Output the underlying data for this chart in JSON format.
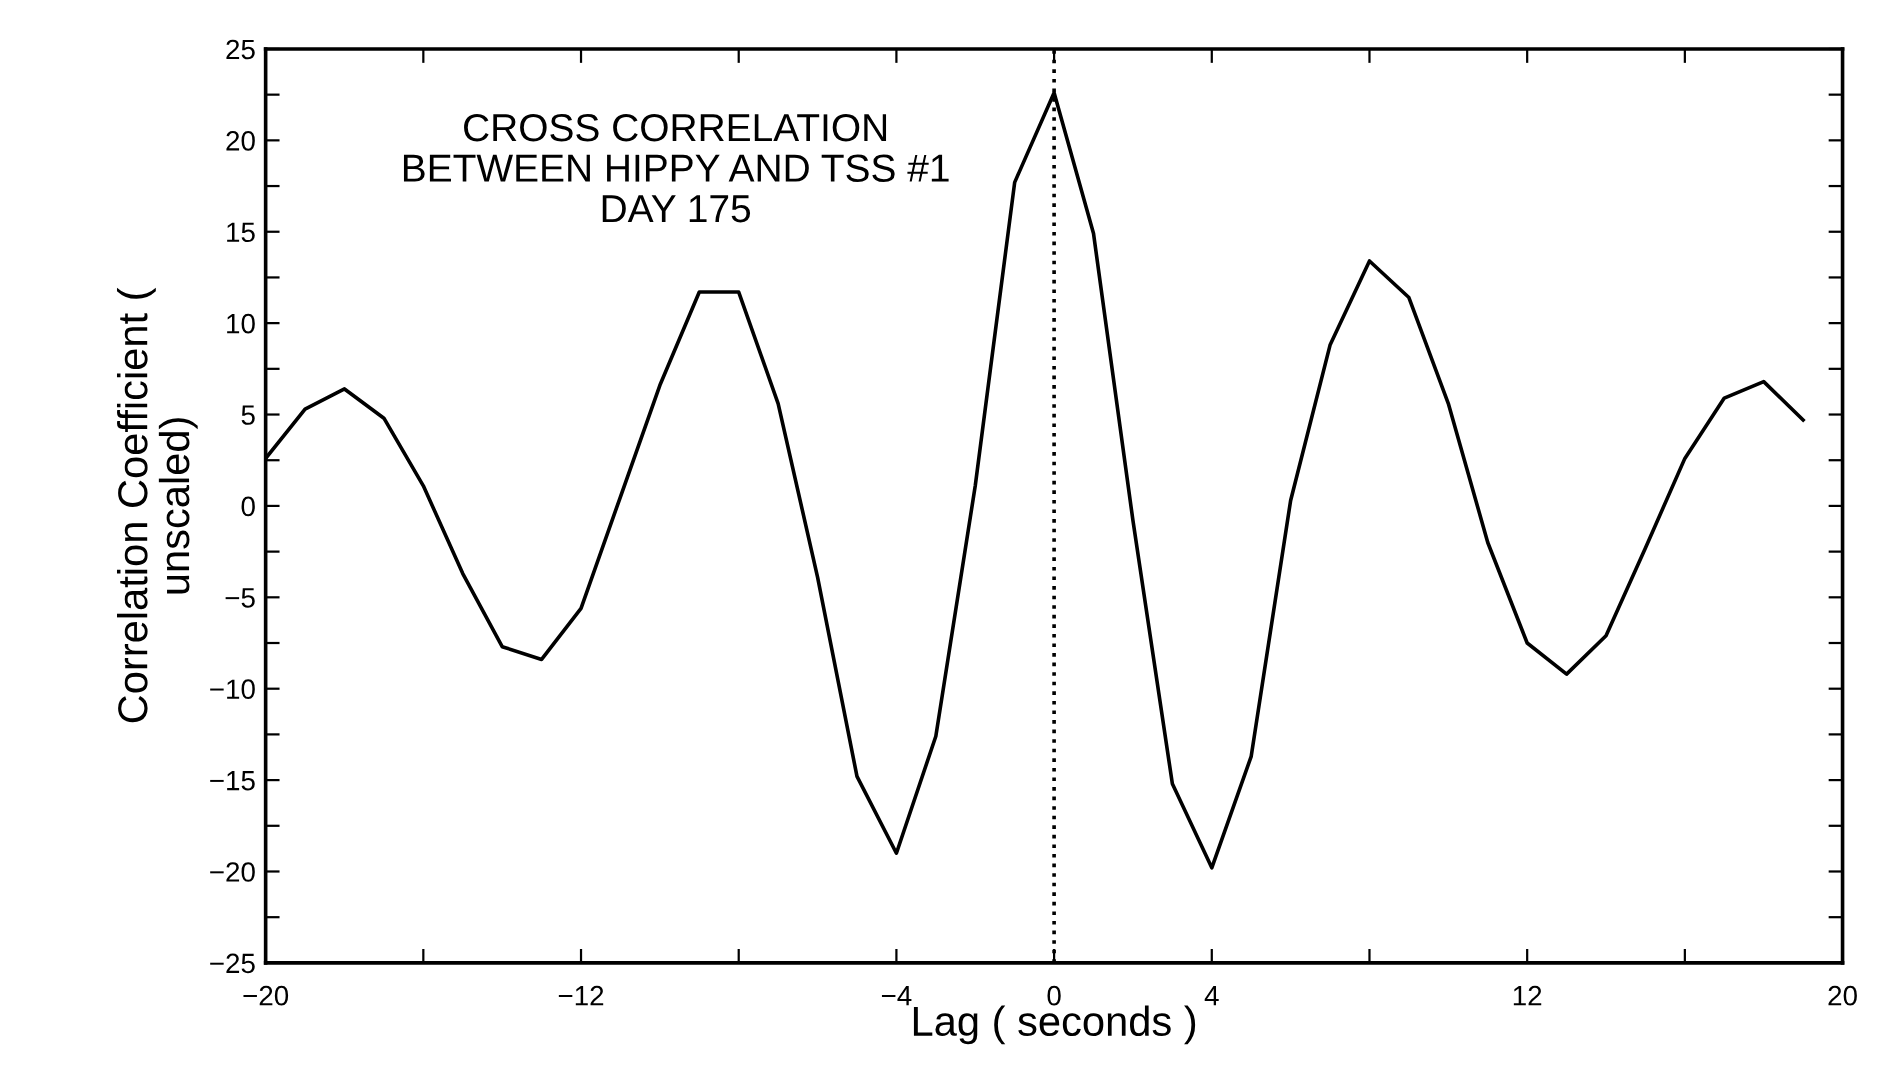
{
  "chart_data": {
    "type": "line",
    "title": "CROSS CORRELATION\nBETWEEN HIPPY AND TSS #1\nDAY 175",
    "xlabel": "Lag ( seconds )",
    "ylabel": "Correlation Coefficient (\nunscaled)",
    "x": [
      -20,
      -19,
      -18,
      -17,
      -16,
      -15,
      -14,
      -13,
      -12,
      -11,
      -10,
      -9,
      -8,
      -7,
      -6,
      -5,
      -4,
      -3,
      -2,
      -1,
      0,
      1,
      2,
      3,
      4,
      5,
      6,
      7,
      8,
      9,
      10,
      11,
      12,
      13,
      14,
      15,
      16,
      17,
      18,
      19
    ],
    "series": [
      {
        "color": "#000000",
        "values": [
          2.6,
          5.3,
          6.4,
          4.8,
          1.1,
          -3.7,
          -7.7,
          -8.4,
          -5.6,
          0.5,
          6.6,
          11.7,
          11.7,
          5.6,
          -3.9,
          -14.8,
          -19.0,
          -12.6,
          1.1,
          17.7,
          22.6,
          14.9,
          -0.8,
          -15.2,
          -19.8,
          -13.7,
          0.3,
          8.8,
          13.4,
          11.4,
          5.6,
          -2.0,
          -7.5,
          -9.2,
          -7.1,
          -2.3,
          2.6,
          5.9,
          6.8,
          4.7
        ]
      }
    ],
    "xlim": [
      -20,
      20
    ],
    "xticks": [
      -20,
      {
        "value": -16,
        "label": null
      },
      -12,
      {
        "value": -8,
        "label": null
      },
      -4,
      0,
      4,
      {
        "value": 8,
        "label": null
      },
      12,
      {
        "value": 16,
        "label": null
      },
      20
    ],
    "ylim": [
      -25,
      25
    ],
    "yticks": [
      -25,
      {
        "value": -22.5,
        "label": null
      },
      -20,
      {
        "value": -17.5,
        "label": null
      },
      -15,
      {
        "value": -12.5,
        "label": null
      },
      -10,
      {
        "value": -7.5,
        "label": null
      },
      -5,
      {
        "value": -2.5,
        "label": null
      },
      0,
      {
        "value": 2.5,
        "label": null
      },
      5,
      {
        "value": 7.5,
        "label": null
      },
      10,
      {
        "value": 12.5,
        "label": null
      },
      15,
      {
        "value": 17.5,
        "label": null
      },
      20,
      {
        "value": 22.5,
        "label": null
      },
      25
    ],
    "ref_lines": [
      {
        "axis": "x",
        "value": 0,
        "label": null,
        "color": "#000000",
        "line_style": "dotted"
      }
    ],
    "grid": false,
    "legend": false,
    "marker": "none",
    "line_style": "solid"
  }
}
